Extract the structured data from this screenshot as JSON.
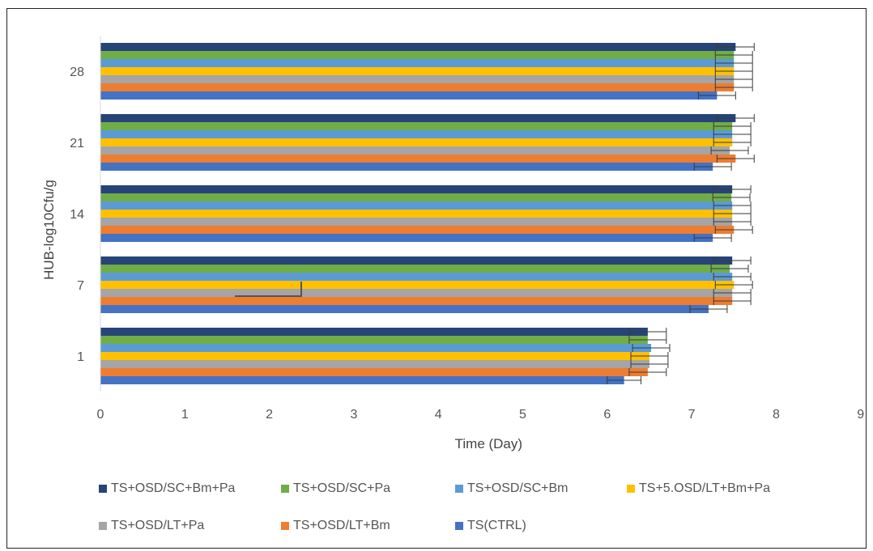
{
  "chart_data": {
    "type": "bar",
    "orientation": "horizontal",
    "categories": [
      "1",
      "7",
      "14",
      "21",
      "28"
    ],
    "xlabel": "Time (Day)",
    "ylabel": "HUB-log10Cfu/g",
    "xlim": [
      0,
      9
    ],
    "xticks": [
      "0",
      "1",
      "2",
      "3",
      "4",
      "5",
      "6",
      "7",
      "8",
      "9"
    ],
    "grid": false,
    "legend_position": "bottom",
    "series": [
      {
        "name": "TS(CTRL)",
        "color": "#4472c4",
        "values": [
          6.2,
          7.2,
          7.25,
          7.25,
          7.3
        ],
        "errors": [
          0.2,
          0.22,
          0.22,
          0.22,
          0.22
        ]
      },
      {
        "name": "TS+OSD/LT+Bm",
        "color": "#ed7d31",
        "values": [
          6.48,
          7.48,
          7.5,
          7.52,
          7.5
        ],
        "errors": [
          0.22,
          0.22,
          0.22,
          0.22,
          0.22
        ]
      },
      {
        "name": "TS+OSD/LT+Pa",
        "color": "#a5a5a5",
        "values": [
          6.5,
          7.48,
          7.48,
          7.45,
          7.5
        ],
        "errors": [
          0.22,
          0.22,
          0.22,
          0.22,
          0.22
        ]
      },
      {
        "name": "TS+5.OSD/LT+Bm+Pa",
        "color": "#ffc000",
        "values": [
          6.5,
          7.5,
          7.48,
          7.48,
          7.5
        ],
        "errors": [
          0.22,
          0.22,
          0.22,
          0.22,
          0.22
        ]
      },
      {
        "name": "TS+OSD/SC+Bm",
        "color": "#5b9bd5",
        "values": [
          6.52,
          7.48,
          7.48,
          7.48,
          7.5
        ],
        "errors": [
          0.22,
          0.22,
          0.22,
          0.22,
          0.22
        ]
      },
      {
        "name": "TS+OSD/SC+Pa",
        "color": "#70ad47",
        "values": [
          6.48,
          7.45,
          7.47,
          7.48,
          7.5
        ],
        "errors": [
          0.22,
          0.22,
          0.22,
          0.22,
          0.22
        ]
      },
      {
        "name": "TS+OSD/SC+Bm+Pa",
        "color": "#264478",
        "values": [
          6.48,
          7.48,
          7.48,
          7.52,
          7.52
        ],
        "errors": [
          0.22,
          0.22,
          0.22,
          0.22,
          0.22
        ]
      }
    ],
    "legend_order": [
      "TS+OSD/SC+Bm+Pa",
      "TS+OSD/SC+Pa",
      "TS+OSD/SC+Bm",
      "TS+5.OSD/LT+Bm+Pa",
      "TS+OSD/LT+Pa",
      "TS+OSD/LT+Bm",
      "TS(CTRL)"
    ]
  }
}
